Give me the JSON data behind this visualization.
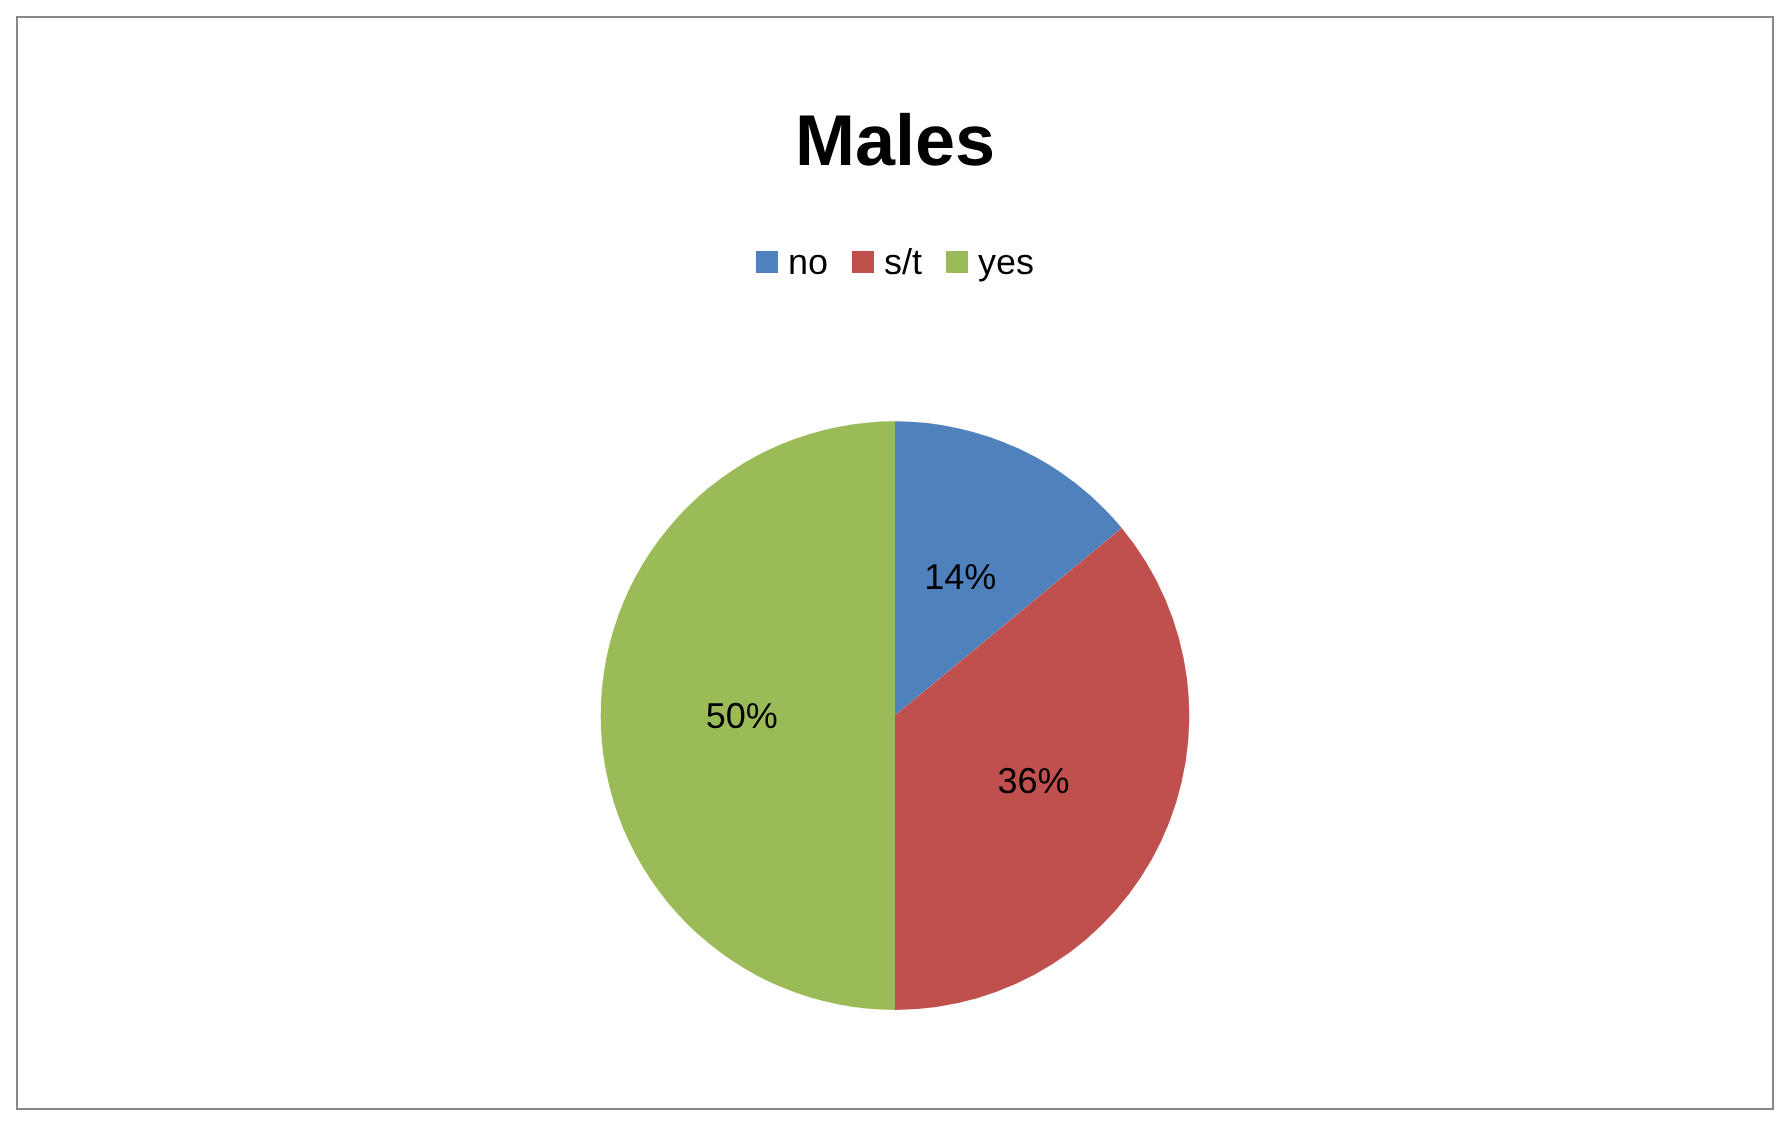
{
  "chart_data": {
    "type": "pie",
    "title": "Males",
    "categories": [
      "no",
      "s/t",
      "yes"
    ],
    "values": [
      14,
      36,
      50
    ],
    "colors": [
      "#4f81bd",
      "#c0504d",
      "#9bbb59"
    ],
    "value_labels": [
      "14%",
      "36%",
      "50%"
    ],
    "legend": "top"
  }
}
